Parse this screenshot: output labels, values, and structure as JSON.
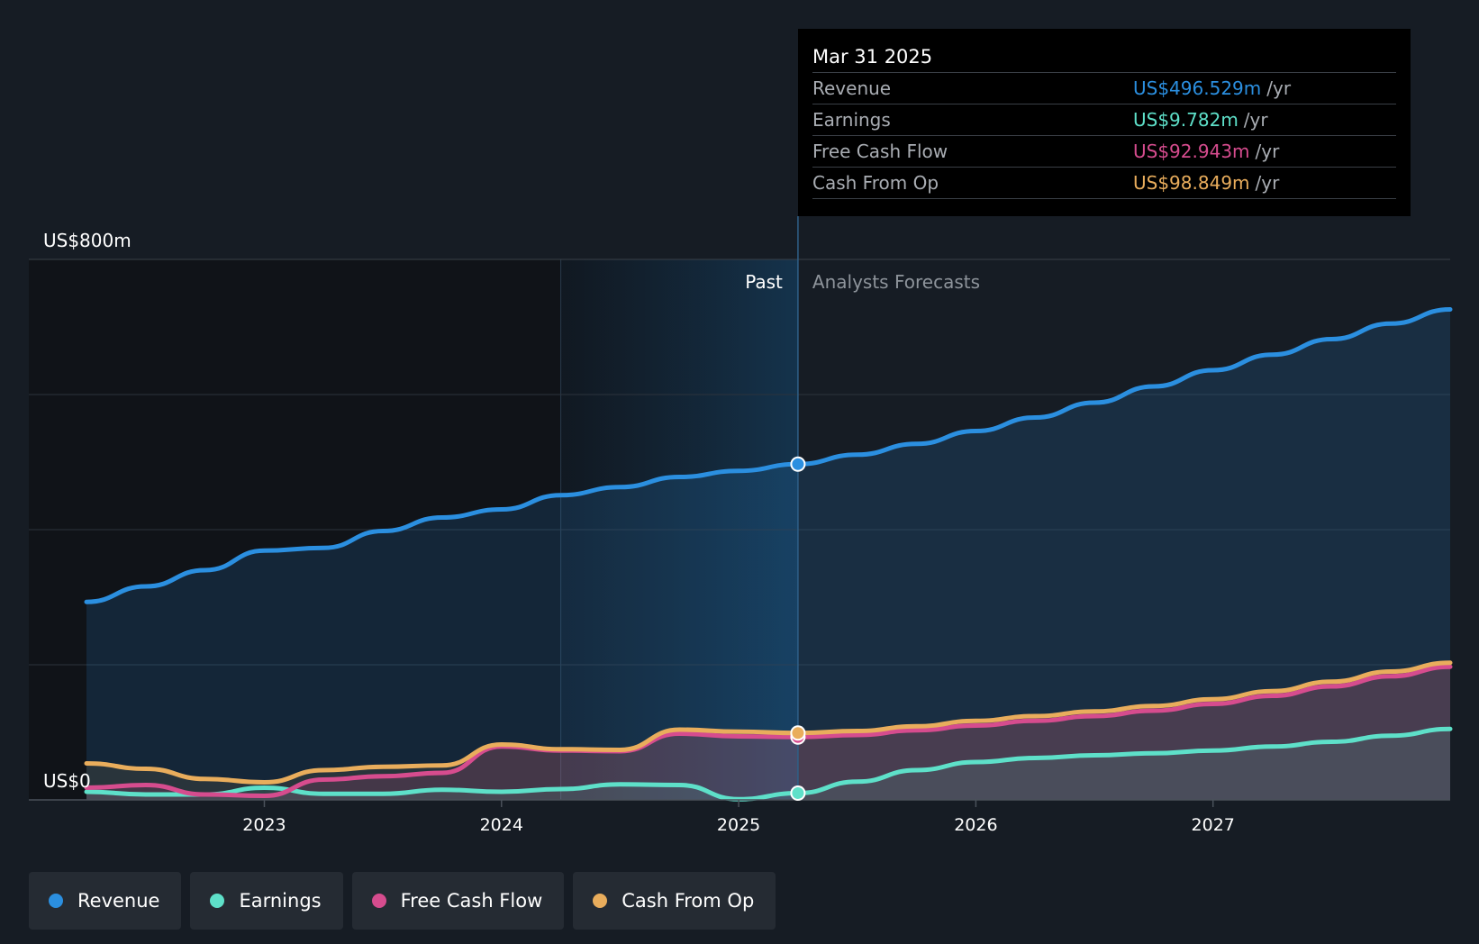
{
  "chart_data": {
    "type": "area",
    "y_axis": {
      "top_label": "US$800m",
      "bottom_label": "US$0",
      "ylim": [
        0,
        800
      ],
      "unit": "US$ m"
    },
    "x_axis": {
      "ticks": [
        "2023",
        "2024",
        "2025",
        "2026",
        "2027"
      ],
      "range": [
        2022.25,
        2028.0
      ]
    },
    "regions": {
      "past_label": "Past",
      "forecast_label": "Analysts Forecasts",
      "divider_x": 2025.25
    },
    "grid": true,
    "legend_placement": "bottom",
    "series": [
      {
        "name": "Revenue",
        "color": "#2b8fe0",
        "x": [
          2022.25,
          2022.5,
          2022.75,
          2023.0,
          2023.25,
          2023.5,
          2023.75,
          2024.0,
          2024.25,
          2024.5,
          2024.75,
          2025.0,
          2025.25,
          2025.5,
          2025.75,
          2026.0,
          2026.25,
          2026.5,
          2026.75,
          2027.0,
          2027.25,
          2027.5,
          2027.75,
          2028.0
        ],
        "y": [
          293,
          316,
          340,
          369,
          373,
          398,
          418,
          430,
          451,
          463,
          478,
          487,
          497,
          511,
          527,
          546,
          566,
          588,
          612,
          636,
          659,
          682,
          705,
          726
        ]
      },
      {
        "name": "Earnings",
        "color": "#5ee0c9",
        "x": [
          2022.25,
          2022.5,
          2022.75,
          2023.0,
          2023.25,
          2023.5,
          2023.75,
          2024.0,
          2024.25,
          2024.5,
          2024.75,
          2025.0,
          2025.25,
          2025.5,
          2025.75,
          2026.0,
          2026.25,
          2026.5,
          2026.75,
          2027.0,
          2027.25,
          2027.5,
          2027.75,
          2028.0
        ],
        "y": [
          12,
          8,
          8,
          18,
          9,
          9,
          15,
          12,
          16,
          23,
          22,
          1,
          10,
          27,
          44,
          56,
          62,
          66,
          69,
          73,
          79,
          86,
          95,
          105
        ]
      },
      {
        "name": "Free Cash Flow",
        "color": "#d64c8e",
        "x": [
          2022.25,
          2022.5,
          2022.75,
          2023.0,
          2023.25,
          2023.5,
          2023.75,
          2024.0,
          2024.25,
          2024.5,
          2024.75,
          2025.0,
          2025.25,
          2025.5,
          2025.75,
          2026.0,
          2026.25,
          2026.5,
          2026.75,
          2027.0,
          2027.25,
          2027.5,
          2027.75,
          2028.0
        ],
        "y": [
          18,
          22,
          8,
          6,
          30,
          35,
          40,
          79,
          73,
          72,
          98,
          94,
          93,
          96,
          103,
          110,
          117,
          124,
          132,
          142,
          154,
          168,
          183,
          197
        ]
      },
      {
        "name": "Cash From Op",
        "color": "#e9ad5c",
        "x": [
          2022.25,
          2022.5,
          2022.75,
          2023.0,
          2023.25,
          2023.5,
          2023.75,
          2024.0,
          2024.25,
          2024.5,
          2024.75,
          2025.0,
          2025.25,
          2025.5,
          2025.75,
          2026.0,
          2026.25,
          2026.5,
          2026.75,
          2027.0,
          2027.25,
          2027.5,
          2027.75,
          2028.0
        ],
        "y": [
          54,
          46,
          31,
          26,
          44,
          49,
          51,
          82,
          75,
          74,
          104,
          101,
          99,
          102,
          109,
          117,
          124,
          131,
          139,
          149,
          161,
          175,
          190,
          203
        ]
      }
    ],
    "highlight": {
      "date": "Mar 31 2025",
      "x": 2025.25,
      "rows": [
        {
          "name": "Revenue",
          "value": "US$496.529m",
          "unit": "/yr",
          "color": "#2b8fe0"
        },
        {
          "name": "Earnings",
          "value": "US$9.782m",
          "unit": "/yr",
          "color": "#5ee0c9"
        },
        {
          "name": "Free Cash Flow",
          "value": "US$92.943m",
          "unit": "/yr",
          "color": "#d64c8e"
        },
        {
          "name": "Cash From Op",
          "value": "US$98.849m",
          "unit": "/yr",
          "color": "#e9ad5c"
        }
      ]
    }
  },
  "legend": [
    {
      "label": "Revenue",
      "color": "#2b8fe0"
    },
    {
      "label": "Earnings",
      "color": "#5ee0c9"
    },
    {
      "label": "Free Cash Flow",
      "color": "#d64c8e"
    },
    {
      "label": "Cash From Op",
      "color": "#e9ad5c"
    }
  ]
}
